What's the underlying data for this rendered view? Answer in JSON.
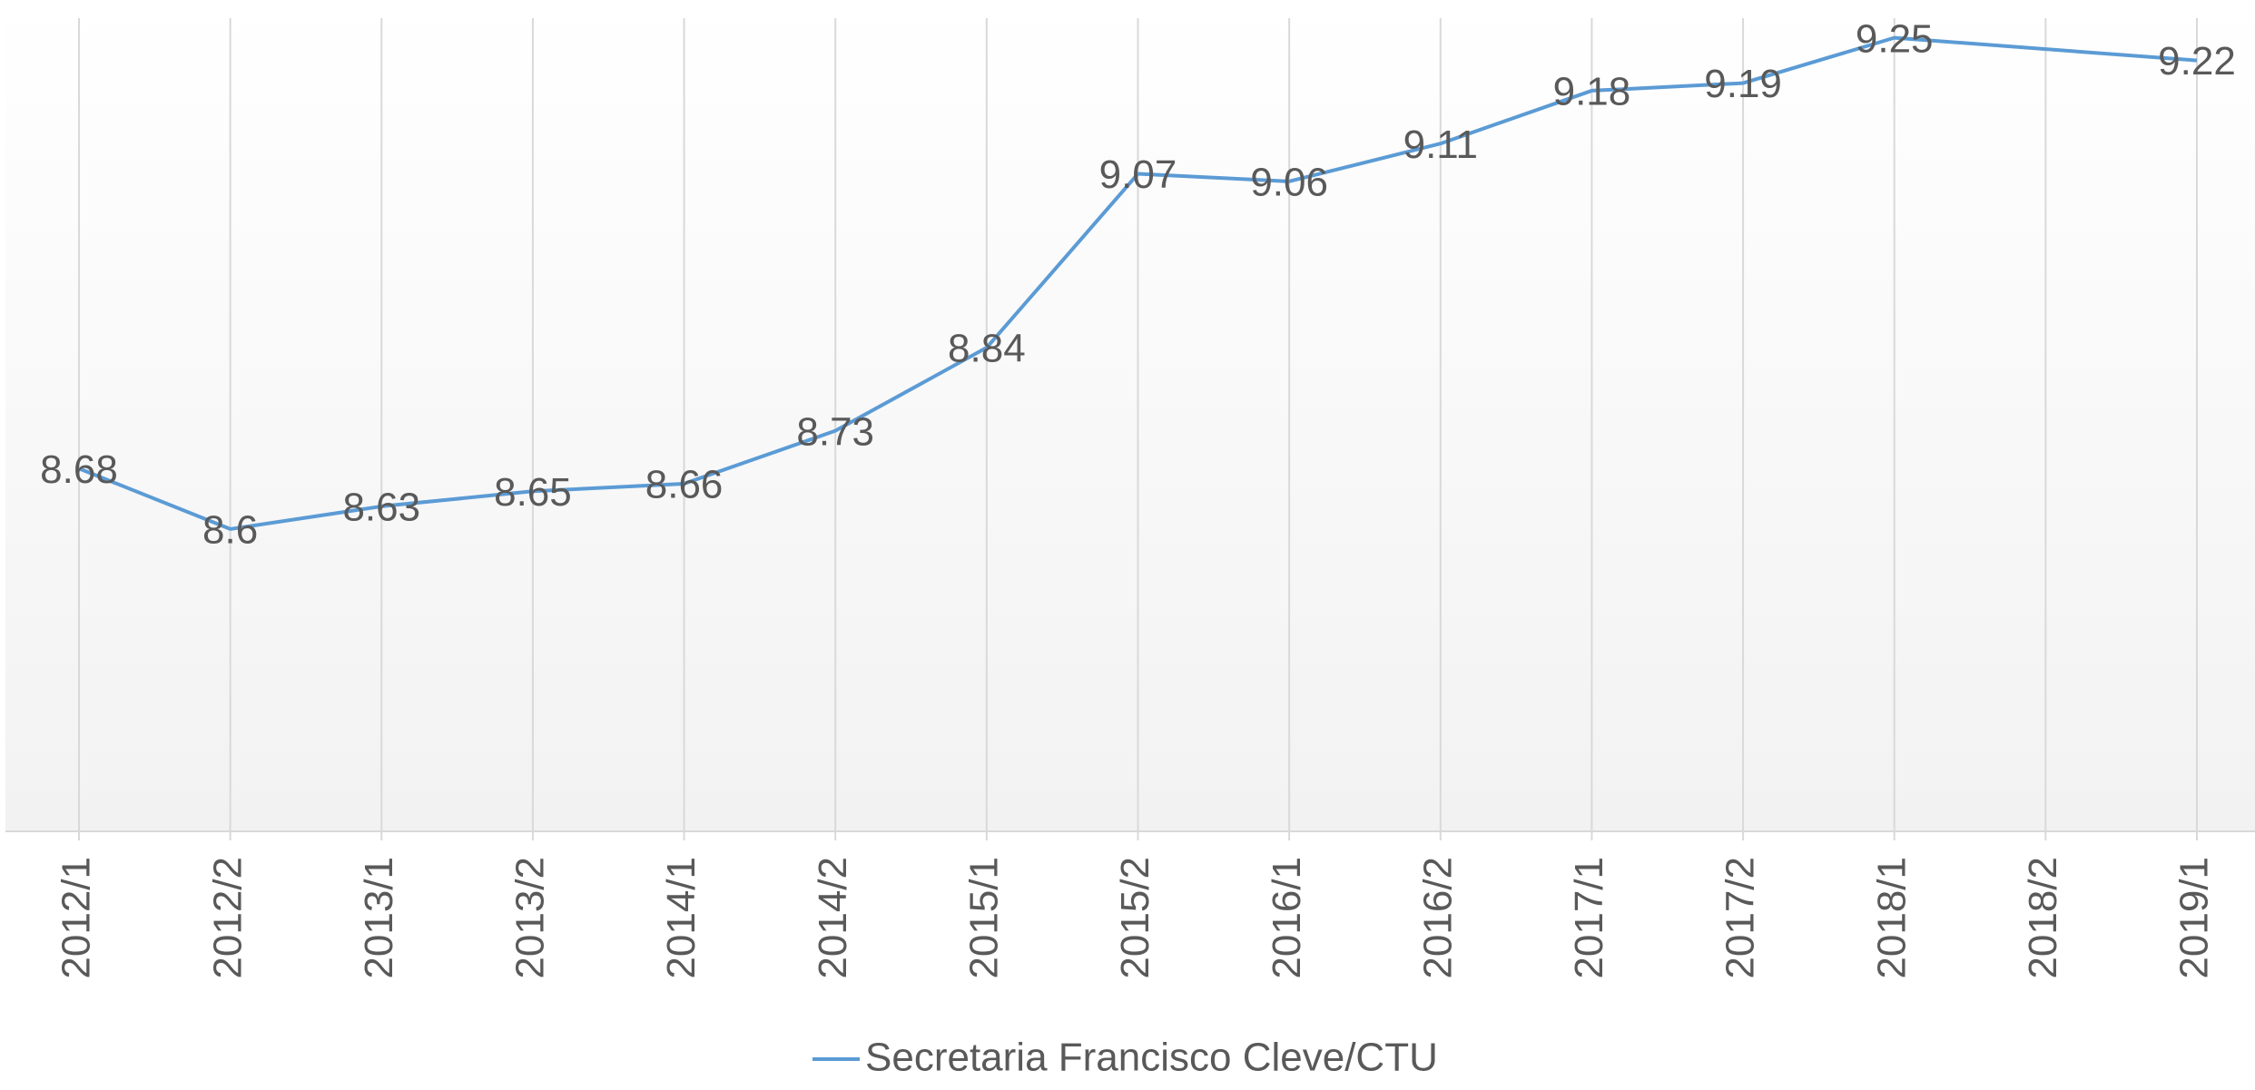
{
  "chart_data": {
    "type": "line",
    "categories": [
      "2012/1",
      "2012/2",
      "2013/1",
      "2013/2",
      "2014/1",
      "2014/2",
      "2015/1",
      "2015/2",
      "2016/1",
      "2016/2",
      "2017/1",
      "2017/2",
      "2018/1",
      "2018/2",
      "2019/1"
    ],
    "series": [
      {
        "name": "Secretaria Francisco Cleve/CTU",
        "color": "#5b9bd5",
        "values": [
          8.68,
          8.6,
          8.63,
          8.65,
          8.66,
          8.73,
          8.84,
          9.07,
          9.06,
          9.11,
          9.18,
          9.19,
          9.25,
          null,
          9.22
        ]
      }
    ],
    "ylim": [
      8.2,
      9.3
    ],
    "connect_gaps": true,
    "grid": "x",
    "legend": "bottom"
  }
}
